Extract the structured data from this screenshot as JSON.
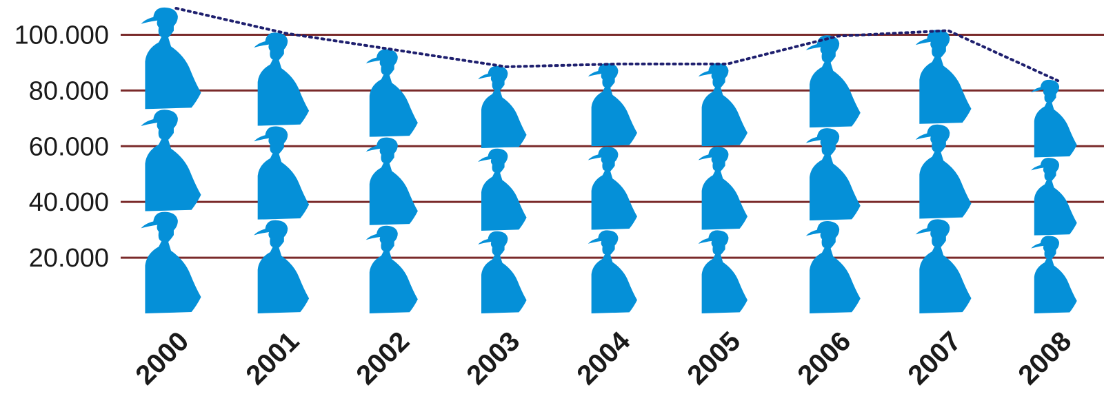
{
  "chart_data": {
    "type": "bar",
    "title": "",
    "xlabel": "",
    "ylabel": "",
    "categories": [
      "2000",
      "2001",
      "2002",
      "2003",
      "2004",
      "2005",
      "2006",
      "2007",
      "2008"
    ],
    "values": [
      110000,
      101000,
      95000,
      89000,
      90000,
      90000,
      100000,
      102000,
      84000
    ],
    "ylim": [
      0,
      110000
    ],
    "yticks": [
      20000,
      40000,
      60000,
      80000,
      100000
    ],
    "ytick_labels": [
      "20.000",
      "40.000",
      "60.000",
      "80.000",
      "100.000"
    ],
    "mark": "person-pictogram",
    "trend_line": "dotted",
    "grid": true,
    "colors": {
      "pictogram": "#0590d8",
      "gridline": "#7a2a2a",
      "trend": "#1e1f6e",
      "text": "#1a1a1a"
    }
  }
}
